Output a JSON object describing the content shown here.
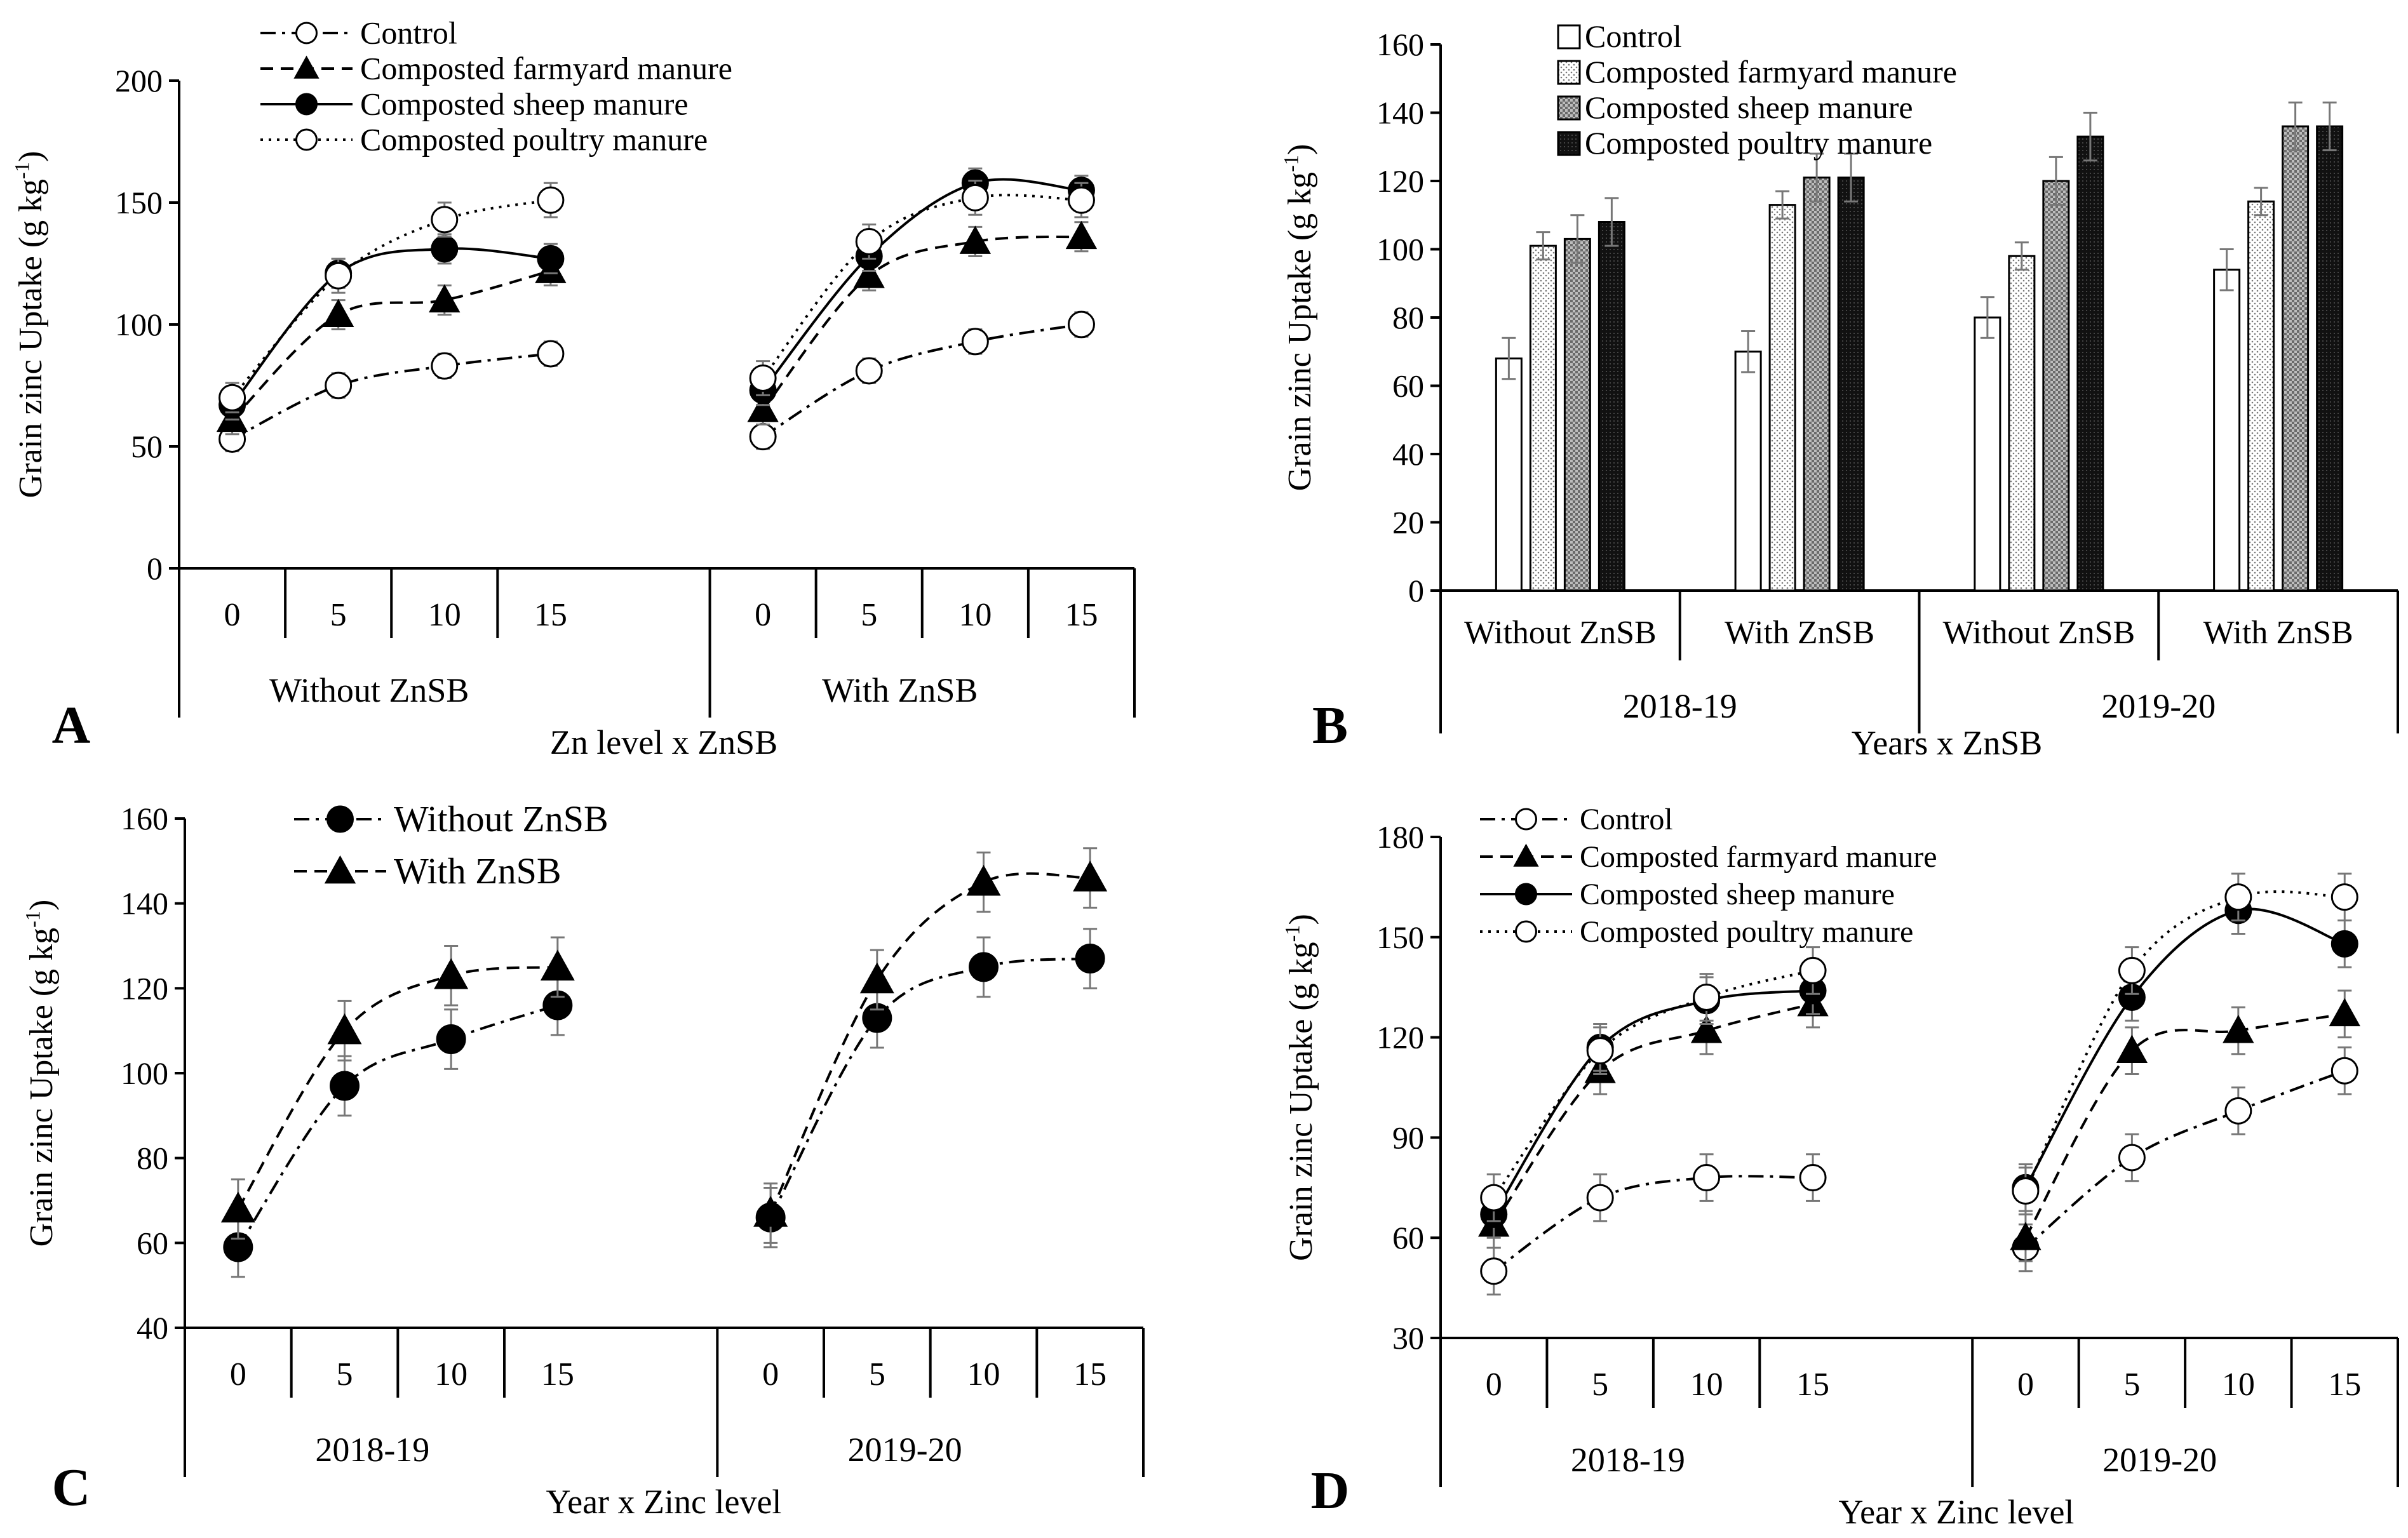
{
  "chart_data": [
    {
      "panel": "A",
      "type": "line",
      "ylabel": "Grain zinc Uptake (g kg-1)",
      "ylim": [
        0,
        200
      ],
      "yticks": [
        0,
        50,
        100,
        150,
        200
      ],
      "xlabel": "Zn level x ZnSB",
      "groups": [
        {
          "label": "Without ZnSB",
          "categories": [
            "0",
            "5",
            "10",
            "15"
          ]
        },
        {
          "label": "With ZnSB",
          "categories": [
            "0",
            "5",
            "10",
            "15"
          ]
        }
      ],
      "legend": "top-left",
      "series": [
        {
          "name": "Control",
          "style": "dashdot",
          "marker": "open-circle",
          "values": [
            [
              53,
              75,
              83,
              88
            ],
            [
              54,
              81,
              93,
              100
            ]
          ],
          "errors": [
            [
              5,
              5,
              5,
              5
            ],
            [
              5,
              5,
              5,
              5
            ]
          ]
        },
        {
          "name": "Composted farmyard manure",
          "style": "dashed",
          "marker": "triangle",
          "values": [
            [
              61,
              104,
              110,
              122
            ],
            [
              65,
              120,
              134,
              136
            ]
          ],
          "errors": [
            [
              6,
              6,
              6,
              6
            ],
            [
              6,
              6,
              6,
              6
            ]
          ]
        },
        {
          "name": "Composted sheep manure",
          "style": "solid",
          "marker": "filled-circle",
          "values": [
            [
              67,
              121,
              131,
              127
            ],
            [
              73,
              128,
              158,
              155
            ]
          ],
          "errors": [
            [
              6,
              6,
              6,
              6
            ],
            [
              6,
              6,
              6,
              6
            ]
          ]
        },
        {
          "name": "Composted poultry manure",
          "style": "dotted",
          "marker": "open-circle",
          "values": [
            [
              70,
              120,
              143,
              151
            ],
            [
              78,
              134,
              152,
              151
            ]
          ],
          "errors": [
            [
              6,
              7,
              7,
              7
            ],
            [
              7,
              7,
              7,
              7
            ]
          ]
        }
      ]
    },
    {
      "panel": "B",
      "type": "bar",
      "ylabel": "Grain zinc Uptake (g kg-1)",
      "ylim": [
        0,
        160
      ],
      "yticks": [
        0,
        20,
        40,
        60,
        80,
        100,
        120,
        140,
        160
      ],
      "xlabel": "Years x ZnSB",
      "subcategories": [
        "Without ZnSB",
        "With ZnSB",
        "Without ZnSB",
        "With ZnSB"
      ],
      "years": [
        "2018-19",
        "2019-20"
      ],
      "legend": "top-left",
      "series": [
        {
          "name": "Control",
          "fill": "white",
          "values": [
            68,
            70,
            80,
            94
          ],
          "errors": [
            6,
            6,
            6,
            6
          ]
        },
        {
          "name": "Composted farmyard manure",
          "fill": "light-dotted",
          "values": [
            101,
            113,
            98,
            114
          ],
          "errors": [
            4,
            4,
            4,
            4
          ]
        },
        {
          "name": "Composted sheep manure",
          "fill": "grey-checker",
          "values": [
            103,
            121,
            120,
            136
          ],
          "errors": [
            7,
            7,
            7,
            7
          ]
        },
        {
          "name": "Composted poultry manure",
          "fill": "black",
          "values": [
            108,
            121,
            133,
            136
          ],
          "errors": [
            7,
            7,
            7,
            7
          ]
        }
      ]
    },
    {
      "panel": "C",
      "type": "line",
      "ylabel": "Grain zinc Uptake (g kg-1)",
      "ylim": [
        40,
        160
      ],
      "yticks": [
        40,
        60,
        80,
        100,
        120,
        140,
        160
      ],
      "xlabel": "Year x Zinc level",
      "groups": [
        {
          "label": "2018-19",
          "categories": [
            "0",
            "5",
            "10",
            "15"
          ]
        },
        {
          "label": "2019-20",
          "categories": [
            "0",
            "5",
            "10",
            "15"
          ]
        }
      ],
      "legend": "top-left",
      "series": [
        {
          "name": "Without ZnSB",
          "style": "dashdot",
          "marker": "filled-circle",
          "values": [
            [
              59,
              97,
              108,
              116
            ],
            [
              66,
              113,
              125,
              127
            ]
          ],
          "errors": [
            [
              7,
              7,
              7,
              7
            ],
            [
              7,
              7,
              7,
              7
            ]
          ]
        },
        {
          "name": "With ZnSB",
          "style": "dashed",
          "marker": "triangle",
          "values": [
            [
              68,
              110,
              123,
              125
            ],
            [
              67,
              122,
              145,
              146
            ]
          ],
          "errors": [
            [
              7,
              7,
              7,
              7
            ],
            [
              7,
              7,
              7,
              7
            ]
          ]
        }
      ]
    },
    {
      "panel": "D",
      "type": "line",
      "ylabel": "Grain zinc Uptake (g kg-1)",
      "ylim": [
        30,
        180
      ],
      "yticks": [
        30,
        60,
        90,
        120,
        150,
        180
      ],
      "xlabel": "Year x Zinc level",
      "groups": [
        {
          "label": "2018-19",
          "categories": [
            "0",
            "5",
            "10",
            "15"
          ]
        },
        {
          "label": "2019-20",
          "categories": [
            "0",
            "5",
            "10",
            "15"
          ]
        }
      ],
      "legend": "top-left",
      "series": [
        {
          "name": "Control",
          "style": "dashdot",
          "marker": "open-circle",
          "values": [
            [
              50,
              72,
              78,
              78
            ],
            [
              57,
              84,
              98,
              110
            ]
          ],
          "errors": [
            [
              7,
              7,
              7,
              7
            ],
            [
              7,
              7,
              7,
              7
            ]
          ]
        },
        {
          "name": "Composted farmyard manure",
          "style": "dashed",
          "marker": "triangle",
          "values": [
            [
              64,
              110,
              122,
              130
            ],
            [
              60,
              116,
              122,
              127
            ]
          ],
          "errors": [
            [
              7,
              7,
              7,
              7
            ],
            [
              7,
              7,
              7,
              7
            ]
          ]
        },
        {
          "name": "Composted sheep manure",
          "style": "solid",
          "marker": "filled-circle",
          "values": [
            [
              67,
              117,
              131,
              134
            ],
            [
              75,
              132,
              158,
              148
            ]
          ],
          "errors": [
            [
              7,
              7,
              7,
              7
            ],
            [
              7,
              7,
              7,
              7
            ]
          ]
        },
        {
          "name": "Composted poultry manure",
          "style": "dotted",
          "marker": "open-circle",
          "values": [
            [
              72,
              116,
              132,
              140
            ],
            [
              74,
              140,
              162,
              162
            ]
          ],
          "errors": [
            [
              7,
              7,
              7,
              7
            ],
            [
              7,
              7,
              7,
              7
            ]
          ]
        }
      ]
    }
  ]
}
